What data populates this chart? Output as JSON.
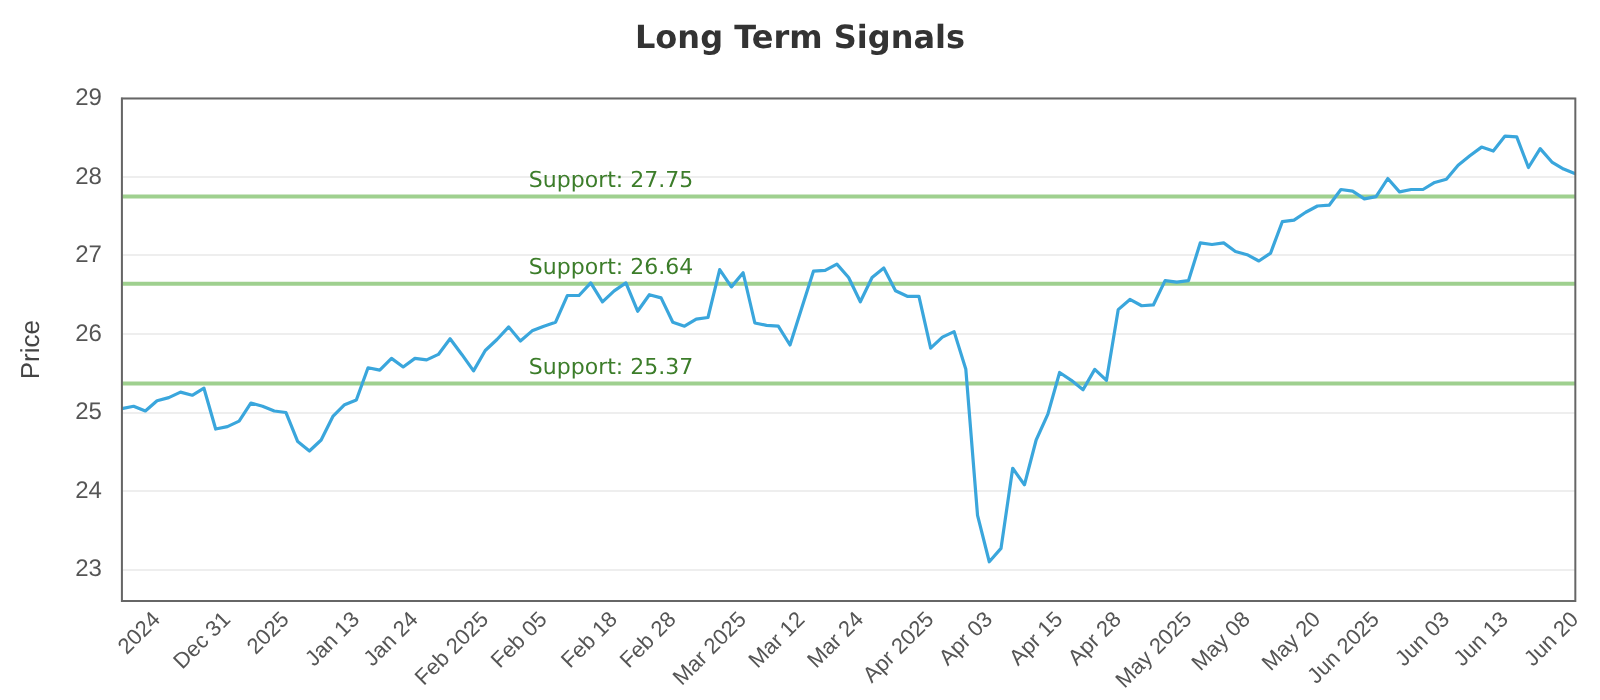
{
  "chart_data": {
    "type": "line",
    "title": "Long Term Signals",
    "ylabel": "Price",
    "categories": [
      null,
      null,
      null,
      "2024",
      null,
      null,
      null,
      null,
      null,
      "Dec 31",
      null,
      null,
      null,
      null,
      "2025",
      null,
      null,
      null,
      null,
      null,
      "Jan 13",
      null,
      null,
      null,
      null,
      "Jan 24",
      null,
      null,
      null,
      null,
      null,
      "Feb 2025",
      null,
      null,
      null,
      null,
      "Feb 05",
      null,
      null,
      null,
      null,
      null,
      "Feb 18",
      null,
      null,
      null,
      null,
      "Feb 28",
      null,
      null,
      null,
      null,
      null,
      "Mar 2025",
      null,
      null,
      null,
      null,
      "Mar 12",
      null,
      null,
      null,
      null,
      "Mar 24",
      null,
      null,
      null,
      null,
      null,
      "Apr 2025",
      null,
      null,
      null,
      null,
      "Apr 03",
      null,
      null,
      null,
      null,
      null,
      "Apr 15",
      null,
      null,
      null,
      null,
      "Apr 28",
      null,
      null,
      null,
      null,
      null,
      "May 2025",
      null,
      null,
      null,
      null,
      "May 08",
      null,
      null,
      null,
      null,
      null,
      "May 20",
      null,
      null,
      null,
      null,
      "Jun 2025",
      null,
      null,
      null,
      null,
      null,
      "Jun 03",
      null,
      null,
      null,
      null,
      "Jun 13",
      null,
      null,
      null,
      null,
      null,
      "Jun 20"
    ],
    "series": [
      {
        "color": "#3aa6dc",
        "values": [
          25.05,
          25.08,
          25.02,
          25.15,
          25.19,
          25.26,
          25.22,
          25.31,
          24.79,
          24.82,
          24.89,
          25.12,
          25.08,
          25.02,
          25.0,
          24.63,
          24.51,
          24.65,
          24.95,
          25.1,
          25.16,
          25.57,
          25.54,
          25.69,
          25.58,
          25.69,
          25.67,
          25.74,
          25.94,
          25.74,
          25.53,
          25.79,
          25.93,
          26.09,
          25.91,
          26.04,
          26.1,
          26.15,
          26.49,
          26.49,
          26.65,
          26.41,
          26.55,
          26.65,
          26.29,
          26.5,
          26.46,
          26.15,
          26.1,
          26.19,
          26.21,
          26.82,
          26.6,
          26.78,
          26.14,
          26.11,
          26.1,
          25.86,
          26.33,
          26.8,
          26.81,
          26.89,
          26.72,
          26.41,
          26.72,
          26.84,
          26.55,
          26.48,
          26.48,
          25.82,
          25.96,
          26.03,
          25.55,
          23.69,
          23.1,
          23.27,
          24.29,
          24.08,
          24.65,
          24.98,
          25.51,
          25.41,
          25.29,
          25.55,
          25.41,
          26.31,
          26.44,
          26.36,
          26.37,
          26.68,
          26.66,
          26.68,
          27.16,
          27.14,
          27.16,
          27.05,
          27.01,
          26.93,
          27.03,
          27.43,
          27.45,
          27.55,
          27.63,
          27.64,
          27.84,
          27.82,
          27.72,
          27.75,
          27.98,
          27.81,
          27.84,
          27.84,
          27.93,
          27.97,
          28.15,
          28.27,
          28.38,
          28.33,
          28.52,
          28.51,
          28.12,
          28.36,
          28.19,
          28.1,
          28.04
        ]
      }
    ],
    "ylim": [
      22.6,
      29
    ],
    "yticks": [
      23,
      24,
      25,
      26,
      27,
      28,
      29
    ],
    "grid": "y",
    "marker": "none",
    "line_style": "solid",
    "legend": false,
    "ref_lines": [
      {
        "axis": "y",
        "value": 27.75,
        "label": "Support: 27.75",
        "color": "#9fd08f"
      },
      {
        "axis": "y",
        "value": 26.64,
        "label": "Support: 26.64",
        "color": "#9fd08f"
      },
      {
        "axis": "y",
        "value": 25.37,
        "label": "Support: 25.37",
        "color": "#9fd08f"
      }
    ]
  }
}
